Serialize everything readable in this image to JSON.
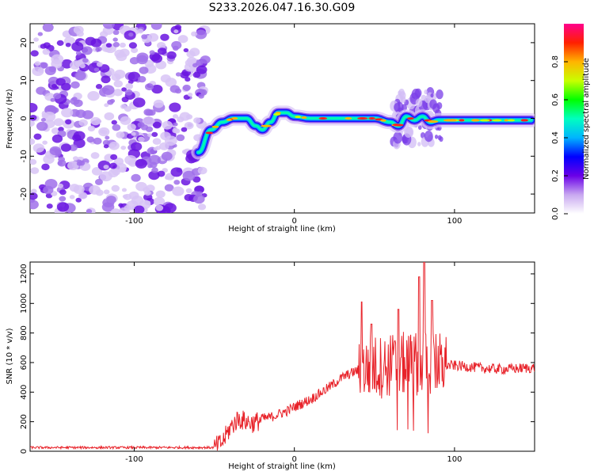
{
  "title": "S233.2026.047.16.30.G09",
  "chart_data": [
    {
      "type": "heatmap",
      "name": "spectrogram",
      "xlabel": "Height of straight line (km)",
      "ylabel": "Frequency (Hz)",
      "xlim": [
        -165,
        150
      ],
      "ylim": [
        -25,
        25
      ],
      "xticks": [
        -100,
        0,
        100
      ],
      "yticks": [
        -20,
        -10,
        0,
        10,
        20
      ],
      "colorbar": {
        "label": "Normalized spectral amplitude",
        "range": [
          0,
          1
        ],
        "ticks": [
          0.0,
          0.2,
          0.4,
          0.6,
          0.8
        ]
      },
      "features": {
        "noise_region_x": [
          -165,
          -55
        ],
        "ridge": {
          "x": [
            -60,
            -52,
            -45,
            -38,
            -30,
            -24,
            -20,
            -15,
            -10,
            -5,
            0,
            10,
            20,
            30,
            40,
            50,
            60,
            65,
            70,
            75,
            80,
            85,
            90,
            100,
            110,
            120,
            130,
            140,
            148
          ],
          "freq_hz": [
            -9,
            -3,
            -1,
            0,
            0,
            -2,
            -3,
            -1,
            1.5,
            1.5,
            0.5,
            0,
            0,
            0,
            0,
            0,
            -1,
            -2,
            0.5,
            -0.5,
            0.5,
            -1,
            -0.5,
            -0.5,
            -0.5,
            -0.5,
            -0.5,
            -0.5,
            -0.5
          ]
        },
        "disturbance_x": [
          62,
          92
        ]
      }
    },
    {
      "type": "line",
      "name": "snr",
      "xlabel": "Height of straight line (km)",
      "ylabel": "SNR (10 * v/v)",
      "xlim": [
        -165,
        150
      ],
      "ylim": [
        0,
        1280
      ],
      "xticks": [
        -100,
        0,
        100
      ],
      "yticks": [
        0,
        200,
        400,
        600,
        800,
        1000,
        1200
      ],
      "color": "#e8232a",
      "series": [
        {
          "name": "SNR",
          "envelope_x": [
            -165,
            -50,
            -45,
            -40,
            -35,
            -30,
            -25,
            -20,
            -15,
            -10,
            -5,
            0,
            10,
            20,
            30,
            40,
            50,
            60,
            70,
            80,
            90,
            95,
            100,
            110,
            120,
            130,
            140,
            150
          ],
          "envelope_y": [
            25,
            25,
            60,
            160,
            220,
            200,
            190,
            220,
            230,
            250,
            270,
            300,
            350,
            420,
            500,
            550,
            570,
            580,
            590,
            600,
            590,
            580,
            580,
            570,
            560,
            555,
            560,
            565
          ],
          "bursts": [
            {
              "x": 42,
              "max": 1010
            },
            {
              "x": 48,
              "max": 860
            },
            {
              "x": 65,
              "max": 960
            },
            {
              "x": 78,
              "max": 1180
            },
            {
              "x": 81,
              "max": 1280
            },
            {
              "x": 86,
              "max": 1020
            }
          ]
        }
      ]
    }
  ]
}
